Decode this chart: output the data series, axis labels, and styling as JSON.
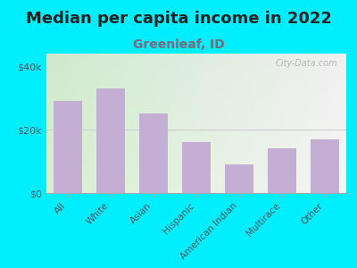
{
  "title": "Median per capita income in 2022",
  "subtitle": "Greenleaf, ID",
  "categories": [
    "All",
    "White",
    "Asian",
    "Hispanic",
    "American Indian",
    "Multirace",
    "Other"
  ],
  "values": [
    29000,
    33000,
    25000,
    16000,
    9000,
    14000,
    17000
  ],
  "bar_color": "#c4aed4",
  "background_outer": "#00eeff",
  "background_inner_topleft": "#d6edce",
  "background_inner_topright": "#f0f0f0",
  "background_inner_bottomleft": "#e0f0d8",
  "background_inner_bottomright": "#f8f8f8",
  "title_color": "#222222",
  "subtitle_color": "#7a6a7a",
  "tick_label_color": "#555555",
  "yticks": [
    0,
    20000,
    40000
  ],
  "ytick_labels": [
    "$0",
    "$20k",
    "$40k"
  ],
  "ylim": [
    0,
    44000
  ],
  "title_fontsize": 13,
  "subtitle_fontsize": 10,
  "watermark_text": "City-Data.com",
  "watermark_color": "#b0b0b0"
}
